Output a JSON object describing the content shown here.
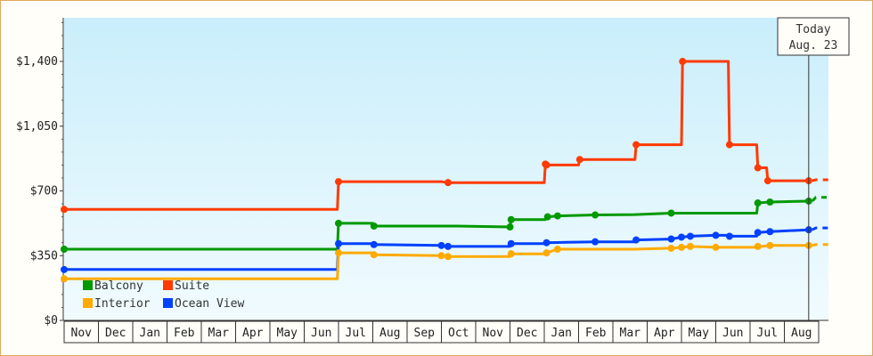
{
  "chart_data": {
    "type": "line",
    "step": true,
    "title": "",
    "xlabel": "",
    "ylabel": "",
    "ylim": [
      0,
      1636
    ],
    "yticks": [
      0,
      350,
      700,
      1050,
      1400
    ],
    "ytick_labels": [
      "$0",
      "$350",
      "$700",
      "$1,050",
      "$1,400"
    ],
    "x_start": "2022-11-01",
    "x_end": "2023-09-01",
    "month_labels": [
      "Nov",
      "Dec",
      "Jan",
      "Feb",
      "Mar",
      "Apr",
      "May",
      "Jun",
      "Jul",
      "Aug",
      "Sep",
      "Oct",
      "Nov",
      "Dec",
      "Jan",
      "Feb",
      "Mar",
      "Apr",
      "May",
      "Jun",
      "Jul",
      "Aug"
    ],
    "today": {
      "line1": "Today",
      "line2": "Aug. 23",
      "date": "2024-08-23"
    },
    "legend": {
      "position": "bottom-left"
    },
    "series": [
      {
        "name": "Suite",
        "color": "#ff3a00",
        "points": [
          [
            "2022-11-01",
            600
          ],
          [
            "2023-06-30",
            600
          ],
          [
            "2023-07-01",
            750
          ],
          [
            "2023-10-01",
            750
          ],
          [
            "2023-10-07",
            745
          ],
          [
            "2024-01-01",
            745
          ],
          [
            "2024-01-02",
            845
          ],
          [
            "2024-01-03",
            840
          ],
          [
            "2024-02-01",
            840
          ],
          [
            "2024-02-02",
            870
          ],
          [
            "2024-03-21",
            870
          ],
          [
            "2024-03-22",
            950
          ],
          [
            "2024-05-01",
            950
          ],
          [
            "2024-05-02",
            1400
          ],
          [
            "2024-06-12",
            1400
          ],
          [
            "2024-06-13",
            950
          ],
          [
            "2024-07-07",
            950
          ],
          [
            "2024-07-08",
            825
          ],
          [
            "2024-07-16",
            825
          ],
          [
            "2024-07-17",
            755
          ],
          [
            "2024-08-23",
            755
          ]
        ],
        "future": 760
      },
      {
        "name": "Balcony",
        "color": "#009900",
        "points": [
          [
            "2022-11-01",
            385
          ],
          [
            "2023-06-30",
            385
          ],
          [
            "2023-07-01",
            525
          ],
          [
            "2023-08-01",
            525
          ],
          [
            "2023-08-02",
            510
          ],
          [
            "2023-10-15",
            510
          ],
          [
            "2023-12-01",
            505
          ],
          [
            "2023-12-02",
            545
          ],
          [
            "2024-01-02",
            545
          ],
          [
            "2024-01-04",
            560
          ],
          [
            "2024-01-13",
            565
          ],
          [
            "2024-02-15",
            570
          ],
          [
            "2024-03-21",
            572
          ],
          [
            "2024-04-22",
            580
          ],
          [
            "2024-06-30",
            580
          ],
          [
            "2024-07-07",
            580
          ],
          [
            "2024-07-08",
            635
          ],
          [
            "2024-07-19",
            640
          ],
          [
            "2024-08-23",
            645
          ]
        ],
        "future": 665
      },
      {
        "name": "Ocean View",
        "color": "#0040ff",
        "points": [
          [
            "2022-11-01",
            275
          ],
          [
            "2023-06-30",
            275
          ],
          [
            "2023-07-01",
            415
          ],
          [
            "2023-08-01",
            415
          ],
          [
            "2023-08-02",
            410
          ],
          [
            "2023-10-01",
            405
          ],
          [
            "2023-10-07",
            400
          ],
          [
            "2023-12-01",
            400
          ],
          [
            "2023-12-02",
            415
          ],
          [
            "2024-01-02",
            415
          ],
          [
            "2024-01-03",
            420
          ],
          [
            "2024-02-15",
            425
          ],
          [
            "2024-03-21",
            425
          ],
          [
            "2024-03-22",
            435
          ],
          [
            "2024-04-22",
            440
          ],
          [
            "2024-05-01",
            450
          ],
          [
            "2024-05-09",
            455
          ],
          [
            "2024-06-01",
            460
          ],
          [
            "2024-06-12",
            460
          ],
          [
            "2024-06-13",
            455
          ],
          [
            "2024-07-07",
            455
          ],
          [
            "2024-07-08",
            475
          ],
          [
            "2024-07-19",
            480
          ],
          [
            "2024-08-23",
            490
          ]
        ],
        "future": 500
      },
      {
        "name": "Interior",
        "color": "#ffaa00",
        "points": [
          [
            "2022-11-01",
            225
          ],
          [
            "2023-06-30",
            225
          ],
          [
            "2023-07-01",
            365
          ],
          [
            "2023-08-01",
            365
          ],
          [
            "2023-08-02",
            355
          ],
          [
            "2023-10-01",
            350
          ],
          [
            "2023-10-07",
            345
          ],
          [
            "2023-12-01",
            345
          ],
          [
            "2023-12-02",
            360
          ],
          [
            "2024-01-02",
            360
          ],
          [
            "2024-01-03",
            365
          ],
          [
            "2024-01-13",
            385
          ],
          [
            "2024-02-15",
            385
          ],
          [
            "2024-03-21",
            385
          ],
          [
            "2024-04-22",
            390
          ],
          [
            "2024-05-01",
            395
          ],
          [
            "2024-05-09",
            400
          ],
          [
            "2024-06-01",
            395
          ],
          [
            "2024-07-07",
            395
          ],
          [
            "2024-07-08",
            400
          ],
          [
            "2024-07-12",
            400
          ],
          [
            "2024-07-19",
            405
          ],
          [
            "2024-08-23",
            405
          ]
        ],
        "future": 410
      }
    ]
  }
}
